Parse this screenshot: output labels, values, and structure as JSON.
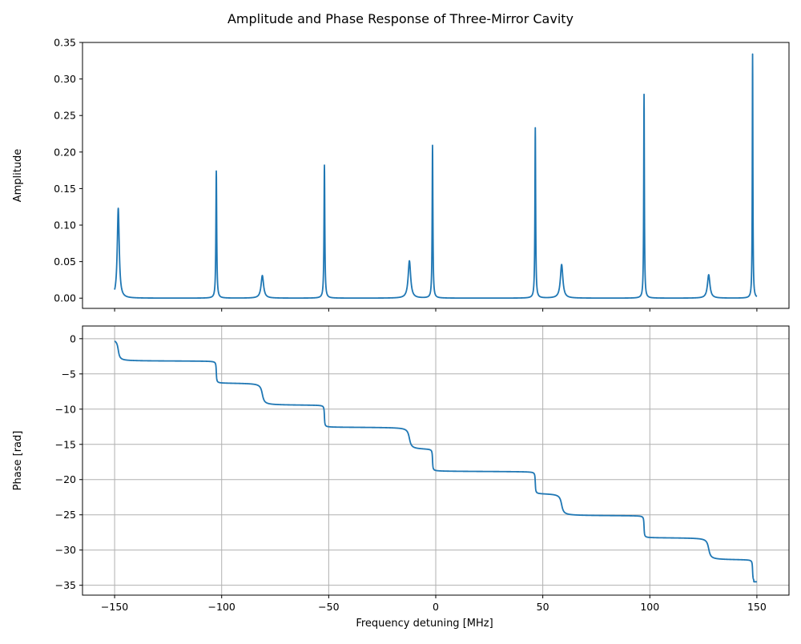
{
  "figure_title": "Amplitude and Phase Response of Three-Mirror Cavity",
  "colors": {
    "series": "#1f77b4",
    "grid": "#b0b0b0",
    "frame": "#000000",
    "background": "#ffffff"
  },
  "chart_data": [
    {
      "type": "line",
      "panel": "top",
      "ylabel": "Amplitude",
      "xlabel": "",
      "xlim": [
        -165,
        165
      ],
      "ylim": [
        -0.014,
        0.35
      ],
      "xticks": [
        -150,
        -100,
        -50,
        0,
        50,
        100,
        150
      ],
      "xtick_labels": [
        "",
        "",
        "",
        "",
        "",
        "",
        ""
      ],
      "yticks": [
        0.0,
        0.05,
        0.1,
        0.15,
        0.2,
        0.25,
        0.3,
        0.35
      ],
      "ytick_labels": [
        "0.00",
        "0.05",
        "0.10",
        "0.15",
        "0.20",
        "0.25",
        "0.30",
        "0.35"
      ],
      "grid": false,
      "series": [
        {
          "color": "#1f77b4",
          "peaks": [
            {
              "f0": -148.3,
              "amp": 0.123,
              "width": 0.55
            },
            {
              "f0": -102.5,
              "amp": 0.174,
              "width": 0.22
            },
            {
              "f0": -81.0,
              "amp": 0.031,
              "width": 0.7
            },
            {
              "f0": -52.0,
              "amp": 0.182,
              "width": 0.22
            },
            {
              "f0": -12.3,
              "amp": 0.051,
              "width": 0.7
            },
            {
              "f0": -1.5,
              "amp": 0.209,
              "width": 0.2
            },
            {
              "f0": 46.5,
              "amp": 0.233,
              "width": 0.2
            },
            {
              "f0": 58.8,
              "amp": 0.046,
              "width": 0.7
            },
            {
              "f0": 97.3,
              "amp": 0.279,
              "width": 0.18
            },
            {
              "f0": 127.5,
              "amp": 0.032,
              "width": 0.7
            },
            {
              "f0": 148.0,
              "amp": 0.334,
              "width": 0.16
            }
          ],
          "x_range": [
            -150,
            150
          ]
        }
      ]
    },
    {
      "type": "line",
      "panel": "bottom",
      "ylabel": "Phase [rad]",
      "xlabel": "Frequency detuning [MHz]",
      "xlim": [
        -165,
        165
      ],
      "ylim": [
        -36.4,
        1.8
      ],
      "xticks": [
        -150,
        -100,
        -50,
        0,
        50,
        100,
        150
      ],
      "xtick_labels": [
        "−150",
        "−100",
        "−50",
        "0",
        "50",
        "100",
        "150"
      ],
      "yticks": [
        0,
        -5,
        -10,
        -15,
        -20,
        -25,
        -30,
        -35
      ],
      "ytick_labels": [
        "0",
        "−5",
        "−10",
        "−15",
        "−20",
        "−25",
        "−30",
        "−35"
      ],
      "grid": true,
      "series": [
        {
          "color": "#1f77b4",
          "steps": [
            {
              "f0": -148.3,
              "width": 0.55
            },
            {
              "f0": -102.5,
              "width": 0.15
            },
            {
              "f0": -81.0,
              "width": 0.7
            },
            {
              "f0": -52.0,
              "width": 0.15
            },
            {
              "f0": -12.3,
              "width": 0.7
            },
            {
              "f0": -1.5,
              "width": 0.15
            },
            {
              "f0": 46.5,
              "width": 0.15
            },
            {
              "f0": 58.8,
              "width": 0.7
            },
            {
              "f0": 97.3,
              "width": 0.15
            },
            {
              "f0": 127.5,
              "width": 0.7
            },
            {
              "f0": 148.0,
              "width": 0.15
            }
          ],
          "step_height": -3.1416,
          "x_range": [
            -150,
            150
          ],
          "y_start": 0.0,
          "y_end": -34.5
        }
      ]
    }
  ]
}
